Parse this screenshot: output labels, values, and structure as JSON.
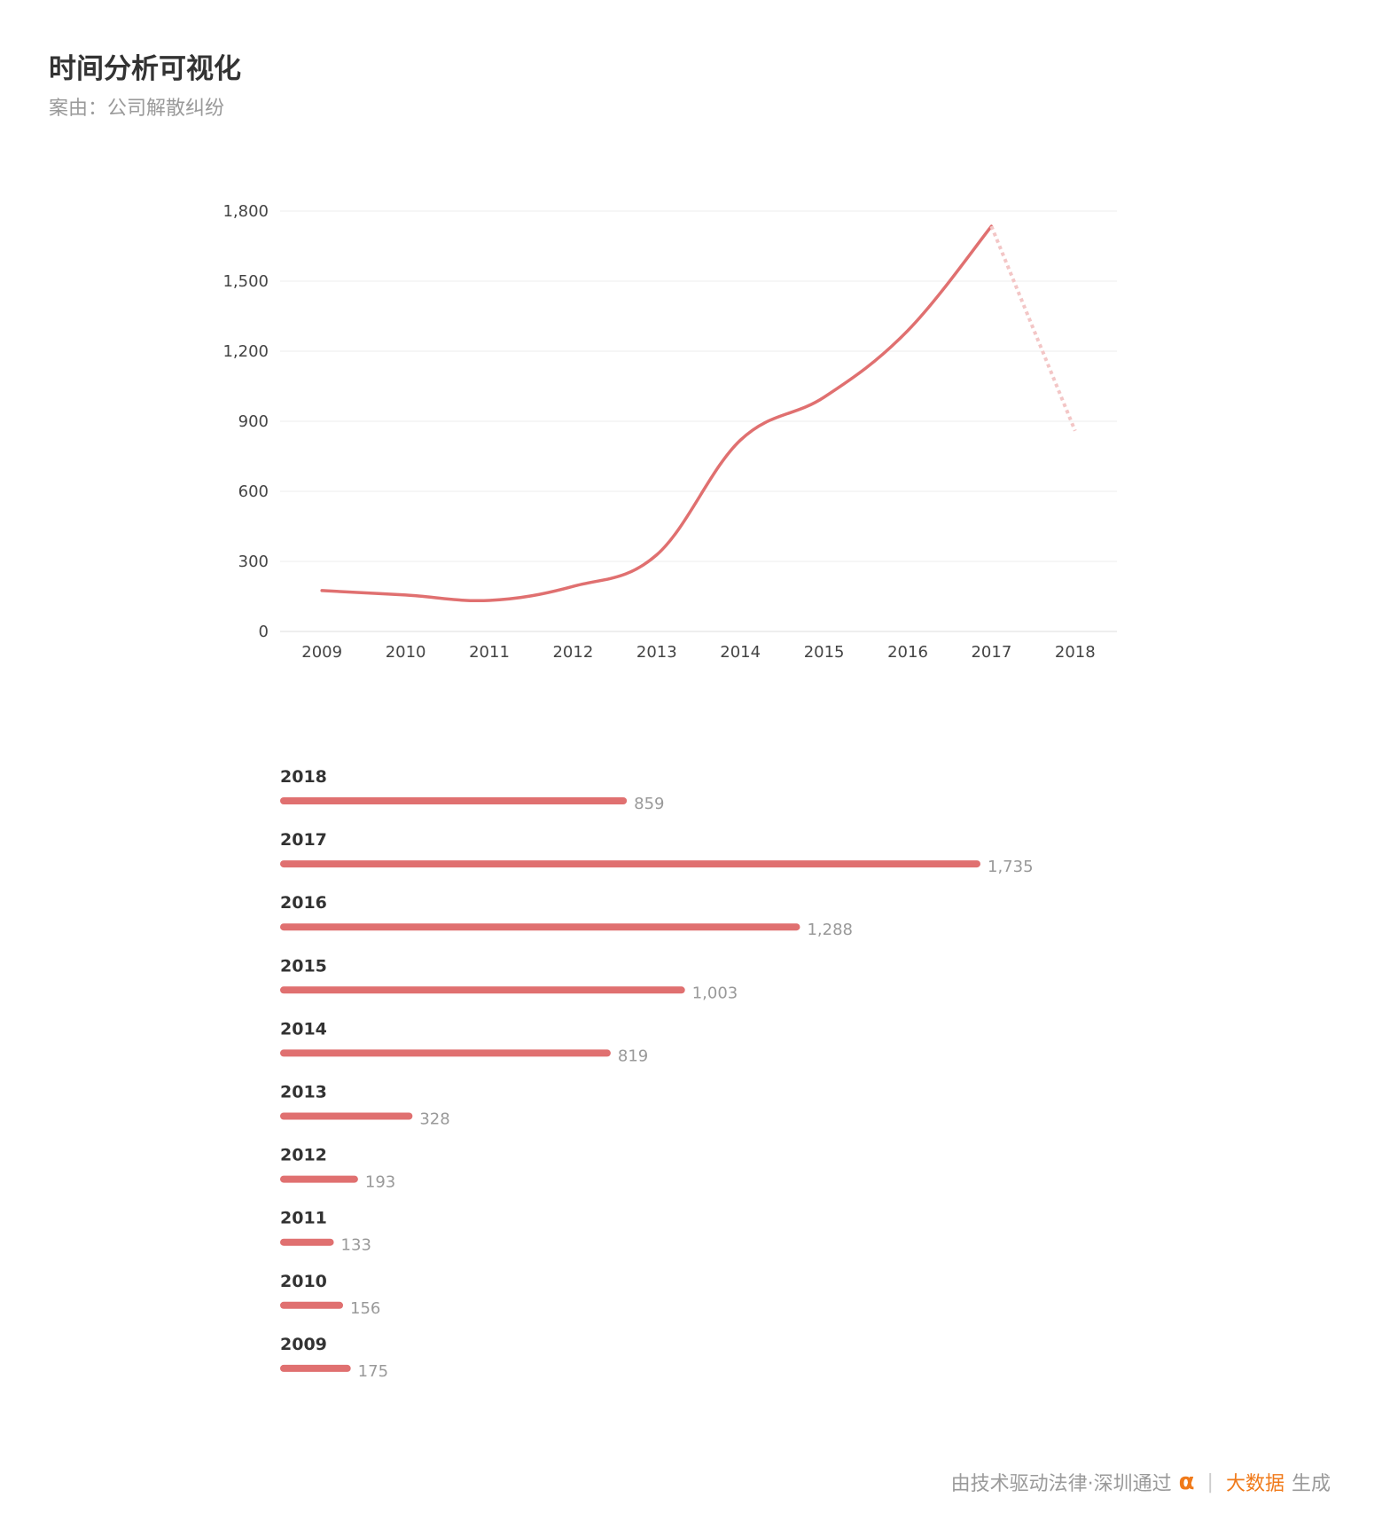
{
  "header": {
    "title": "时间分析可视化",
    "subtitle": "案由：公司解散纠纷"
  },
  "colors": {
    "line": "#e07070",
    "projection": "#f3c6c6",
    "bar": "#e07070",
    "grid": "#eeeeee",
    "axis_text": "#444444",
    "value_text": "#999999",
    "year_text": "#333333",
    "footer_accent": "#f07a1a"
  },
  "chart_data": [
    {
      "type": "line",
      "x": [
        "2009",
        "2010",
        "2011",
        "2012",
        "2013",
        "2014",
        "2015",
        "2016",
        "2017",
        "2018"
      ],
      "values": [
        175,
        156,
        133,
        193,
        328,
        819,
        1003,
        1288,
        1735,
        859
      ],
      "projected_segment_from": "2017",
      "yticks": [
        "0",
        "300",
        "600",
        "900",
        "1,200",
        "1,500",
        "1,800"
      ],
      "ylim": [
        0,
        1800
      ],
      "grid": true
    },
    {
      "type": "bar",
      "orientation": "horizontal",
      "categories": [
        "2018",
        "2017",
        "2016",
        "2015",
        "2014",
        "2013",
        "2012",
        "2011",
        "2010",
        "2009"
      ],
      "values": [
        859,
        1735,
        1288,
        1003,
        819,
        328,
        193,
        133,
        156,
        175
      ],
      "labels": [
        "859",
        "1,735",
        "1,288",
        "1,003",
        "819",
        "328",
        "193",
        "133",
        "156",
        "175"
      ]
    }
  ],
  "footer": {
    "text": "由技术驱动法律·深圳通过",
    "logo_glyph": "α",
    "separator": "|",
    "brand": "大数据",
    "suffix": "生成"
  }
}
